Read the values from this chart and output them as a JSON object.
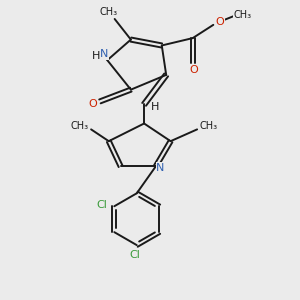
{
  "background_color": "#ebebeb",
  "bond_color": "#1a1a1a",
  "n_color": "#3060b0",
  "o_color": "#cc2200",
  "cl_color": "#3a9a3a",
  "h_color": "#1a1a1a",
  "figure_size": [
    3.0,
    3.0
  ],
  "dpi": 100,
  "xlim": [
    0,
    10
  ],
  "ylim": [
    0,
    10
  ]
}
